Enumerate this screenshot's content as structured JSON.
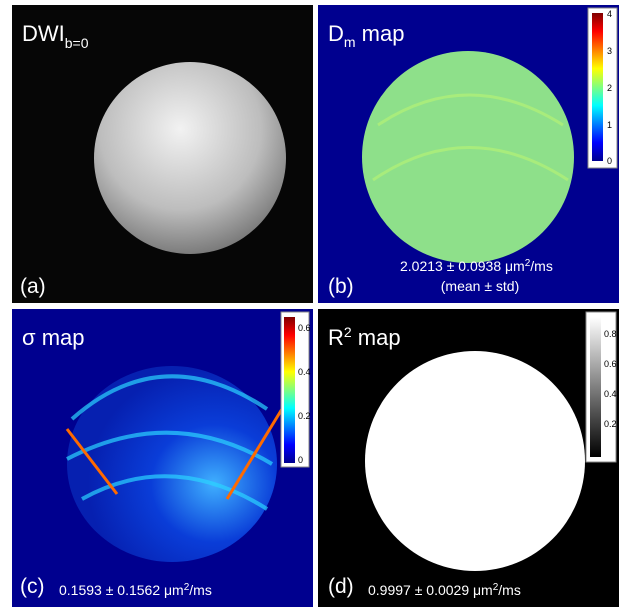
{
  "panels": [
    {
      "label": "(a)",
      "title": {
        "main": "DWI",
        "sub": "b=0"
      }
    },
    {
      "label": "(b)",
      "title": {
        "main": "D",
        "sub": "m",
        "rest": " map"
      },
      "stats": {
        "text": "2.0213 ± 0.0938 μm",
        "sup": "2",
        "unit": "/ms",
        "note": "(mean ± std)"
      },
      "colorbar_ticks": [
        "4",
        "3",
        "2",
        "1",
        "0"
      ]
    },
    {
      "label": "(c)",
      "title": {
        "main": "σ map"
      },
      "stats": {
        "text": "0.1593 ± 0.1562 μm",
        "sup": "2",
        "unit": "/ms"
      },
      "colorbar_ticks": [
        "0.6",
        "0.4",
        "0.2",
        "0"
      ]
    },
    {
      "label": "(d)",
      "title": {
        "main": "R",
        "sup": "2",
        "rest": " map"
      },
      "stats": {
        "text": "0.9997 ± 0.0029 μm",
        "sup": "2",
        "unit": "/ms"
      },
      "colorbar_ticks": [
        "0.8",
        "0.6",
        "0.4",
        "0.2"
      ]
    }
  ]
}
